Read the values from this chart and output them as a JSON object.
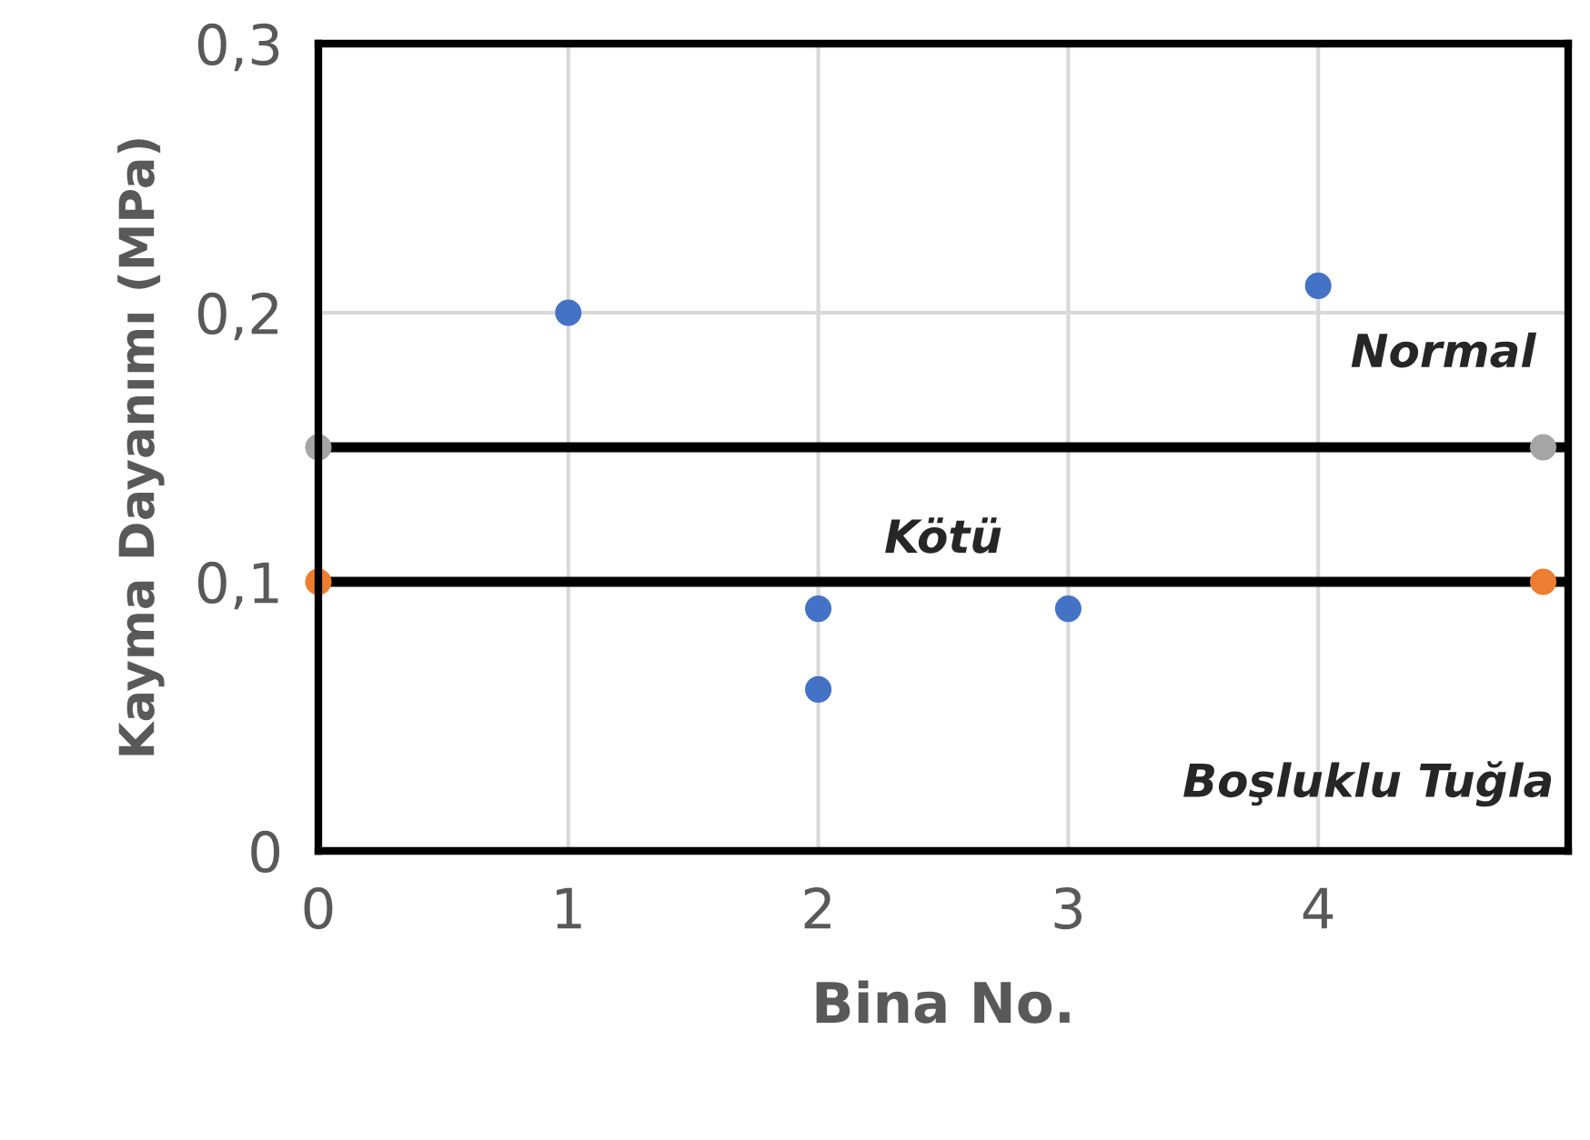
{
  "chart_data": {
    "type": "scatter",
    "xlabel": "Bina No.",
    "ylabel": "Kayma Dayanımı (MPa)",
    "xlim": [
      0,
      5
    ],
    "xticks": [
      0,
      1,
      2,
      3,
      4
    ],
    "ylim": [
      0,
      0.3
    ],
    "yticks": [
      {
        "value": 0,
        "label": "0"
      },
      {
        "value": 0.1,
        "label": "0,1"
      },
      {
        "value": 0.2,
        "label": "0,2"
      },
      {
        "value": 0.3,
        "label": "0,3"
      }
    ],
    "grid": true,
    "marker": "circle",
    "series": [
      {
        "color": "#4472c4",
        "x": [
          1,
          2,
          2,
          3,
          4
        ],
        "values": [
          0.2,
          0.09,
          0.06,
          0.09,
          0.21
        ]
      },
      {
        "color": "#a5a5a5",
        "x": [
          0,
          4.9
        ],
        "values": [
          0.15,
          0.15
        ]
      },
      {
        "color": "#ed7d31",
        "x": [
          0,
          4.9
        ],
        "values": [
          0.1,
          0.1
        ]
      }
    ],
    "ref_lines": [
      {
        "axis": "y",
        "value": 0.15,
        "color": "#000000",
        "line_style": "solid"
      },
      {
        "axis": "y",
        "value": 0.1,
        "color": "#000000",
        "line_style": "solid"
      }
    ],
    "annotations": [
      "Normal",
      "Kötü",
      "Boşluklu Tuğla"
    ]
  }
}
